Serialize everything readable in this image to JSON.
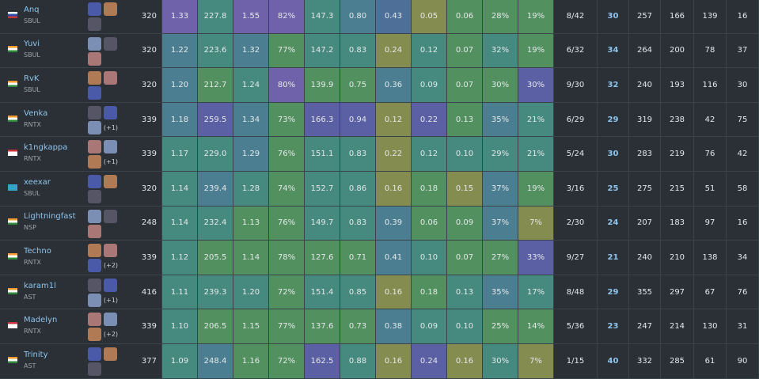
{
  "table": {
    "rows": [
      {
        "name": "Anq",
        "team": "SBUL",
        "flag": [
          "#ffffff",
          "#2b4fa8",
          "#c8303a"
        ],
        "stats": [
          "320",
          "1.33",
          "227.8",
          "1.55",
          "82%",
          "147.3",
          "0.80",
          "0.43",
          "0.05",
          "0.06",
          "28%",
          "19%",
          "8/42",
          "30",
          "257",
          "166",
          "139",
          "16"
        ],
        "colors": [
          "#6f62ab",
          "#46897f",
          "#6f62ab",
          "#6f62ab",
          "#46897f",
          "#4b7e90",
          "#4d6f98",
          "#858c50",
          "#53905f",
          "#53905f",
          "#53905f"
        ]
      },
      {
        "name": "Yuvi",
        "team": "SBUL",
        "flag": [
          "#f39a32",
          "#ffffff",
          "#2e8a3a"
        ],
        "stats": [
          "320",
          "1.22",
          "223.6",
          "1.32",
          "77%",
          "147.2",
          "0.83",
          "0.24",
          "0.12",
          "0.07",
          "32%",
          "19%",
          "6/32",
          "34",
          "264",
          "200",
          "78",
          "37"
        ],
        "colors": [
          "#4b7e90",
          "#46897f",
          "#4b7e90",
          "#53905f",
          "#46897f",
          "#46897f",
          "#858c50",
          "#46897f",
          "#53905f",
          "#46897f",
          "#53905f"
        ]
      },
      {
        "name": "RvK",
        "team": "SBUL",
        "flag": [
          "#f39a32",
          "#ffffff",
          "#2e8a3a"
        ],
        "stats": [
          "320",
          "1.20",
          "212.7",
          "1.24",
          "80%",
          "139.9",
          "0.75",
          "0.36",
          "0.09",
          "0.07",
          "30%",
          "30%",
          "9/30",
          "32",
          "240",
          "193",
          "116",
          "30"
        ],
        "colors": [
          "#4b7e90",
          "#53905f",
          "#46897f",
          "#6f62ab",
          "#53905f",
          "#53905f",
          "#4b7e90",
          "#46897f",
          "#53905f",
          "#53905f",
          "#5b5fa3"
        ]
      },
      {
        "name": "Venka",
        "team": "RNTX",
        "extra": "(+1)",
        "flag": [
          "#f39a32",
          "#ffffff",
          "#2e8a3a"
        ],
        "stats": [
          "339",
          "1.18",
          "259.5",
          "1.34",
          "73%",
          "166.3",
          "0.94",
          "0.12",
          "0.22",
          "0.13",
          "35%",
          "21%",
          "6/29",
          "29",
          "319",
          "238",
          "42",
          "75"
        ],
        "colors": [
          "#4b7e90",
          "#5b5fa3",
          "#4b7e90",
          "#53905f",
          "#5b5fa3",
          "#5b5fa3",
          "#858c50",
          "#5b5fa3",
          "#53905f",
          "#4b7e90",
          "#46897f"
        ]
      },
      {
        "name": "k1ngkappa",
        "team": "RNTX",
        "extra": "(+1)",
        "flag": [
          "#c8303a",
          "#ffffff",
          "#ffffff"
        ],
        "stats": [
          "339",
          "1.17",
          "229.0",
          "1.29",
          "76%",
          "151.1",
          "0.83",
          "0.22",
          "0.12",
          "0.10",
          "29%",
          "21%",
          "5/24",
          "30",
          "283",
          "219",
          "76",
          "42"
        ],
        "colors": [
          "#46897f",
          "#46897f",
          "#4b7e90",
          "#53905f",
          "#46897f",
          "#46897f",
          "#858c50",
          "#46897f",
          "#46897f",
          "#46897f",
          "#46897f"
        ]
      },
      {
        "name": "xeexar",
        "team": "SBUL",
        "flag": [
          "#33a6c8",
          "#33a6c8",
          "#33a6c8"
        ],
        "stats": [
          "320",
          "1.14",
          "239.4",
          "1.28",
          "74%",
          "152.7",
          "0.86",
          "0.16",
          "0.18",
          "0.15",
          "37%",
          "19%",
          "3/16",
          "25",
          "275",
          "215",
          "51",
          "58"
        ],
        "colors": [
          "#46897f",
          "#4b7e90",
          "#46897f",
          "#53905f",
          "#46897f",
          "#46897f",
          "#858c50",
          "#53905f",
          "#858c50",
          "#4b7e90",
          "#53905f"
        ]
      },
      {
        "name": "Lightningfast",
        "team": "NSP",
        "flag": [
          "#f39a32",
          "#ffffff",
          "#2e8a3a"
        ],
        "stats": [
          "248",
          "1.14",
          "232.4",
          "1.13",
          "76%",
          "149.7",
          "0.83",
          "0.39",
          "0.06",
          "0.09",
          "37%",
          "7%",
          "2/30",
          "24",
          "207",
          "183",
          "97",
          "16"
        ],
        "colors": [
          "#46897f",
          "#46897f",
          "#53905f",
          "#53905f",
          "#46897f",
          "#46897f",
          "#4b7e90",
          "#53905f",
          "#53905f",
          "#4b7e90",
          "#858c50"
        ]
      },
      {
        "name": "Techno",
        "team": "RNTX",
        "extra": "(+2)",
        "flag": [
          "#f39a32",
          "#ffffff",
          "#2e8a3a"
        ],
        "stats": [
          "339",
          "1.12",
          "205.5",
          "1.14",
          "78%",
          "127.6",
          "0.71",
          "0.41",
          "0.10",
          "0.07",
          "27%",
          "33%",
          "9/27",
          "21",
          "240",
          "210",
          "138",
          "34"
        ],
        "colors": [
          "#46897f",
          "#53905f",
          "#53905f",
          "#53905f",
          "#53905f",
          "#53905f",
          "#4b7e90",
          "#46897f",
          "#53905f",
          "#53905f",
          "#5b5fa3"
        ]
      },
      {
        "name": "karam1l",
        "team": "AST",
        "extra": "(+1)",
        "flag": [
          "#f39a32",
          "#ffffff",
          "#2e8a3a"
        ],
        "stats": [
          "416",
          "1.11",
          "239.3",
          "1.20",
          "72%",
          "151.4",
          "0.85",
          "0.16",
          "0.18",
          "0.13",
          "35%",
          "17%",
          "8/48",
          "29",
          "355",
          "297",
          "67",
          "76"
        ],
        "colors": [
          "#46897f",
          "#46897f",
          "#46897f",
          "#53905f",
          "#46897f",
          "#46897f",
          "#858c50",
          "#53905f",
          "#46897f",
          "#4b7e90",
          "#46897f"
        ]
      },
      {
        "name": "Madelyn",
        "team": "RNTX",
        "extra": "(+2)",
        "flag": [
          "#c8303a",
          "#ffffff",
          "#ffffff"
        ],
        "stats": [
          "339",
          "1.10",
          "206.5",
          "1.15",
          "77%",
          "137.6",
          "0.73",
          "0.38",
          "0.09",
          "0.10",
          "25%",
          "14%",
          "5/36",
          "23",
          "247",
          "214",
          "130",
          "31"
        ],
        "colors": [
          "#46897f",
          "#53905f",
          "#53905f",
          "#53905f",
          "#53905f",
          "#53905f",
          "#4b7e90",
          "#46897f",
          "#46897f",
          "#53905f",
          "#53905f"
        ]
      },
      {
        "name": "Trinity",
        "team": "AST",
        "flag": [
          "#f39a32",
          "#ffffff",
          "#2e8a3a"
        ],
        "stats": [
          "377",
          "1.09",
          "248.4",
          "1.16",
          "72%",
          "162.5",
          "0.88",
          "0.16",
          "0.24",
          "0.16",
          "30%",
          "7%",
          "1/15",
          "40",
          "332",
          "285",
          "61",
          "90"
        ],
        "colors": [
          "#46897f",
          "#4b7e90",
          "#53905f",
          "#53905f",
          "#5b5fa3",
          "#46897f",
          "#858c50",
          "#5b5fa3",
          "#858c50",
          "#46897f",
          "#858c50"
        ]
      }
    ]
  }
}
